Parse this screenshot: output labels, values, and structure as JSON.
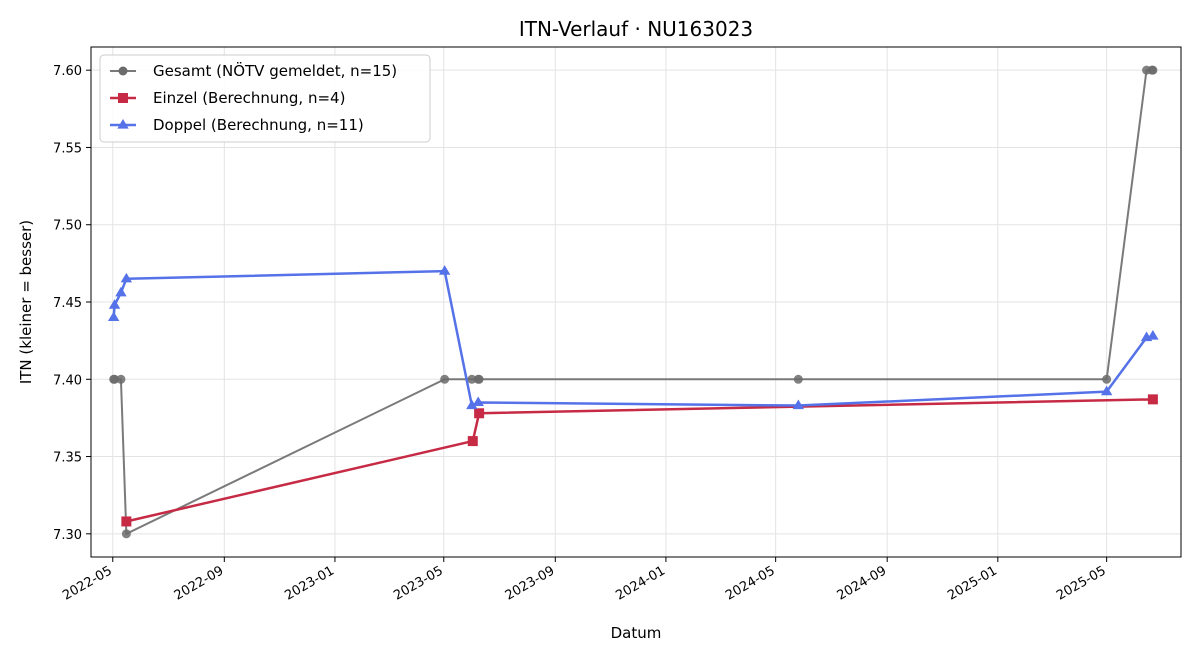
{
  "chart_data": {
    "type": "line",
    "title": "ITN-Verlauf · NU163023",
    "xlabel": "Datum",
    "ylabel": "ITN  (kleiner = besser)",
    "x_type": "date",
    "xlim": [
      "2022-04-07",
      "2025-07-22"
    ],
    "ylim": [
      7.285,
      7.615
    ],
    "x_ticks": [
      "2022-05-01",
      "2022-09-01",
      "2023-01-01",
      "2023-05-01",
      "2023-09-01",
      "2024-01-01",
      "2024-05-01",
      "2024-09-01",
      "2025-01-01",
      "2025-05-01"
    ],
    "x_tick_labels": [
      "2022-05",
      "2022-09",
      "2023-01",
      "2023-05",
      "2023-09",
      "2024-01",
      "2024-05",
      "2024-09",
      "2025-01",
      "2025-05"
    ],
    "y_ticks": [
      7.3,
      7.35,
      7.4,
      7.45,
      7.5,
      7.55,
      7.6
    ],
    "y_tick_labels": [
      "7.30",
      "7.35",
      "7.40",
      "7.45",
      "7.50",
      "7.55",
      "7.60"
    ],
    "grid": true,
    "legend_position": "top-left",
    "series": [
      {
        "name": "Gesamt (NÖTV gemeldet, n=15)",
        "color": "#6b6b6b",
        "marker": "circle",
        "points": [
          {
            "x": "2022-05-02",
            "y": 7.4
          },
          {
            "x": "2022-05-03",
            "y": 7.4
          },
          {
            "x": "2022-05-10",
            "y": 7.4
          },
          {
            "x": "2022-05-16",
            "y": 7.3
          },
          {
            "x": "2023-05-02",
            "y": 7.4
          },
          {
            "x": "2023-06-01",
            "y": 7.4
          },
          {
            "x": "2023-06-08",
            "y": 7.4
          },
          {
            "x": "2023-06-09",
            "y": 7.4
          },
          {
            "x": "2024-05-26",
            "y": 7.4
          },
          {
            "x": "2025-05-01",
            "y": 7.4
          },
          {
            "x": "2025-06-14",
            "y": 7.6
          },
          {
            "x": "2025-06-20",
            "y": 7.6
          },
          {
            "x": "2025-06-21",
            "y": 7.6
          }
        ]
      },
      {
        "name": "Einzel (Berechnung, n=4)",
        "color": "#c62a44",
        "marker": "square",
        "points": [
          {
            "x": "2022-05-16",
            "y": 7.308
          },
          {
            "x": "2023-06-02",
            "y": 7.36
          },
          {
            "x": "2023-06-09",
            "y": 7.378
          },
          {
            "x": "2025-06-21",
            "y": 7.387
          }
        ]
      },
      {
        "name": "Doppel (Berechnung, n=11)",
        "color": "#5572e8",
        "marker": "triangle",
        "points": [
          {
            "x": "2022-05-02",
            "y": 7.44
          },
          {
            "x": "2022-05-03",
            "y": 7.448
          },
          {
            "x": "2022-05-10",
            "y": 7.456
          },
          {
            "x": "2022-05-16",
            "y": 7.465
          },
          {
            "x": "2023-05-02",
            "y": 7.47
          },
          {
            "x": "2023-06-01",
            "y": 7.383
          },
          {
            "x": "2023-06-08",
            "y": 7.385
          },
          {
            "x": "2024-05-26",
            "y": 7.383
          },
          {
            "x": "2025-05-01",
            "y": 7.392
          },
          {
            "x": "2025-06-14",
            "y": 7.427
          },
          {
            "x": "2025-06-21",
            "y": 7.428
          }
        ]
      }
    ]
  }
}
